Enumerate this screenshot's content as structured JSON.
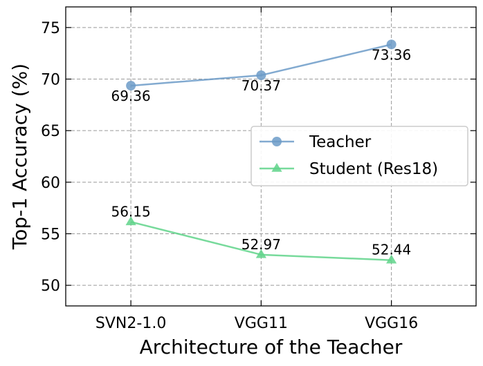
{
  "chart_data": {
    "type": "line",
    "title": "",
    "xlabel": "Architecture of the Teacher",
    "ylabel": "Top-1 Accuracy (%)",
    "categories": [
      "SVN2-1.0",
      "VGG11",
      "VGG16"
    ],
    "ylim": [
      48,
      77
    ],
    "xlim": [
      -0.5,
      2.65
    ],
    "yticks": [
      50,
      55,
      60,
      65,
      70,
      75
    ],
    "grid": true,
    "legend_position": "center-right",
    "series": [
      {
        "name": "Teacher",
        "values": [
          69.36,
          70.37,
          73.36
        ],
        "labels": [
          "69.36",
          "70.37",
          "73.36"
        ],
        "color": "#6c9bc8",
        "marker": "circle"
      },
      {
        "name": "Student (Res18)",
        "values": [
          56.15,
          52.97,
          52.44
        ],
        "labels": [
          "56.15",
          "52.97",
          "52.44"
        ],
        "color": "#5fd38a",
        "marker": "triangle"
      }
    ]
  }
}
